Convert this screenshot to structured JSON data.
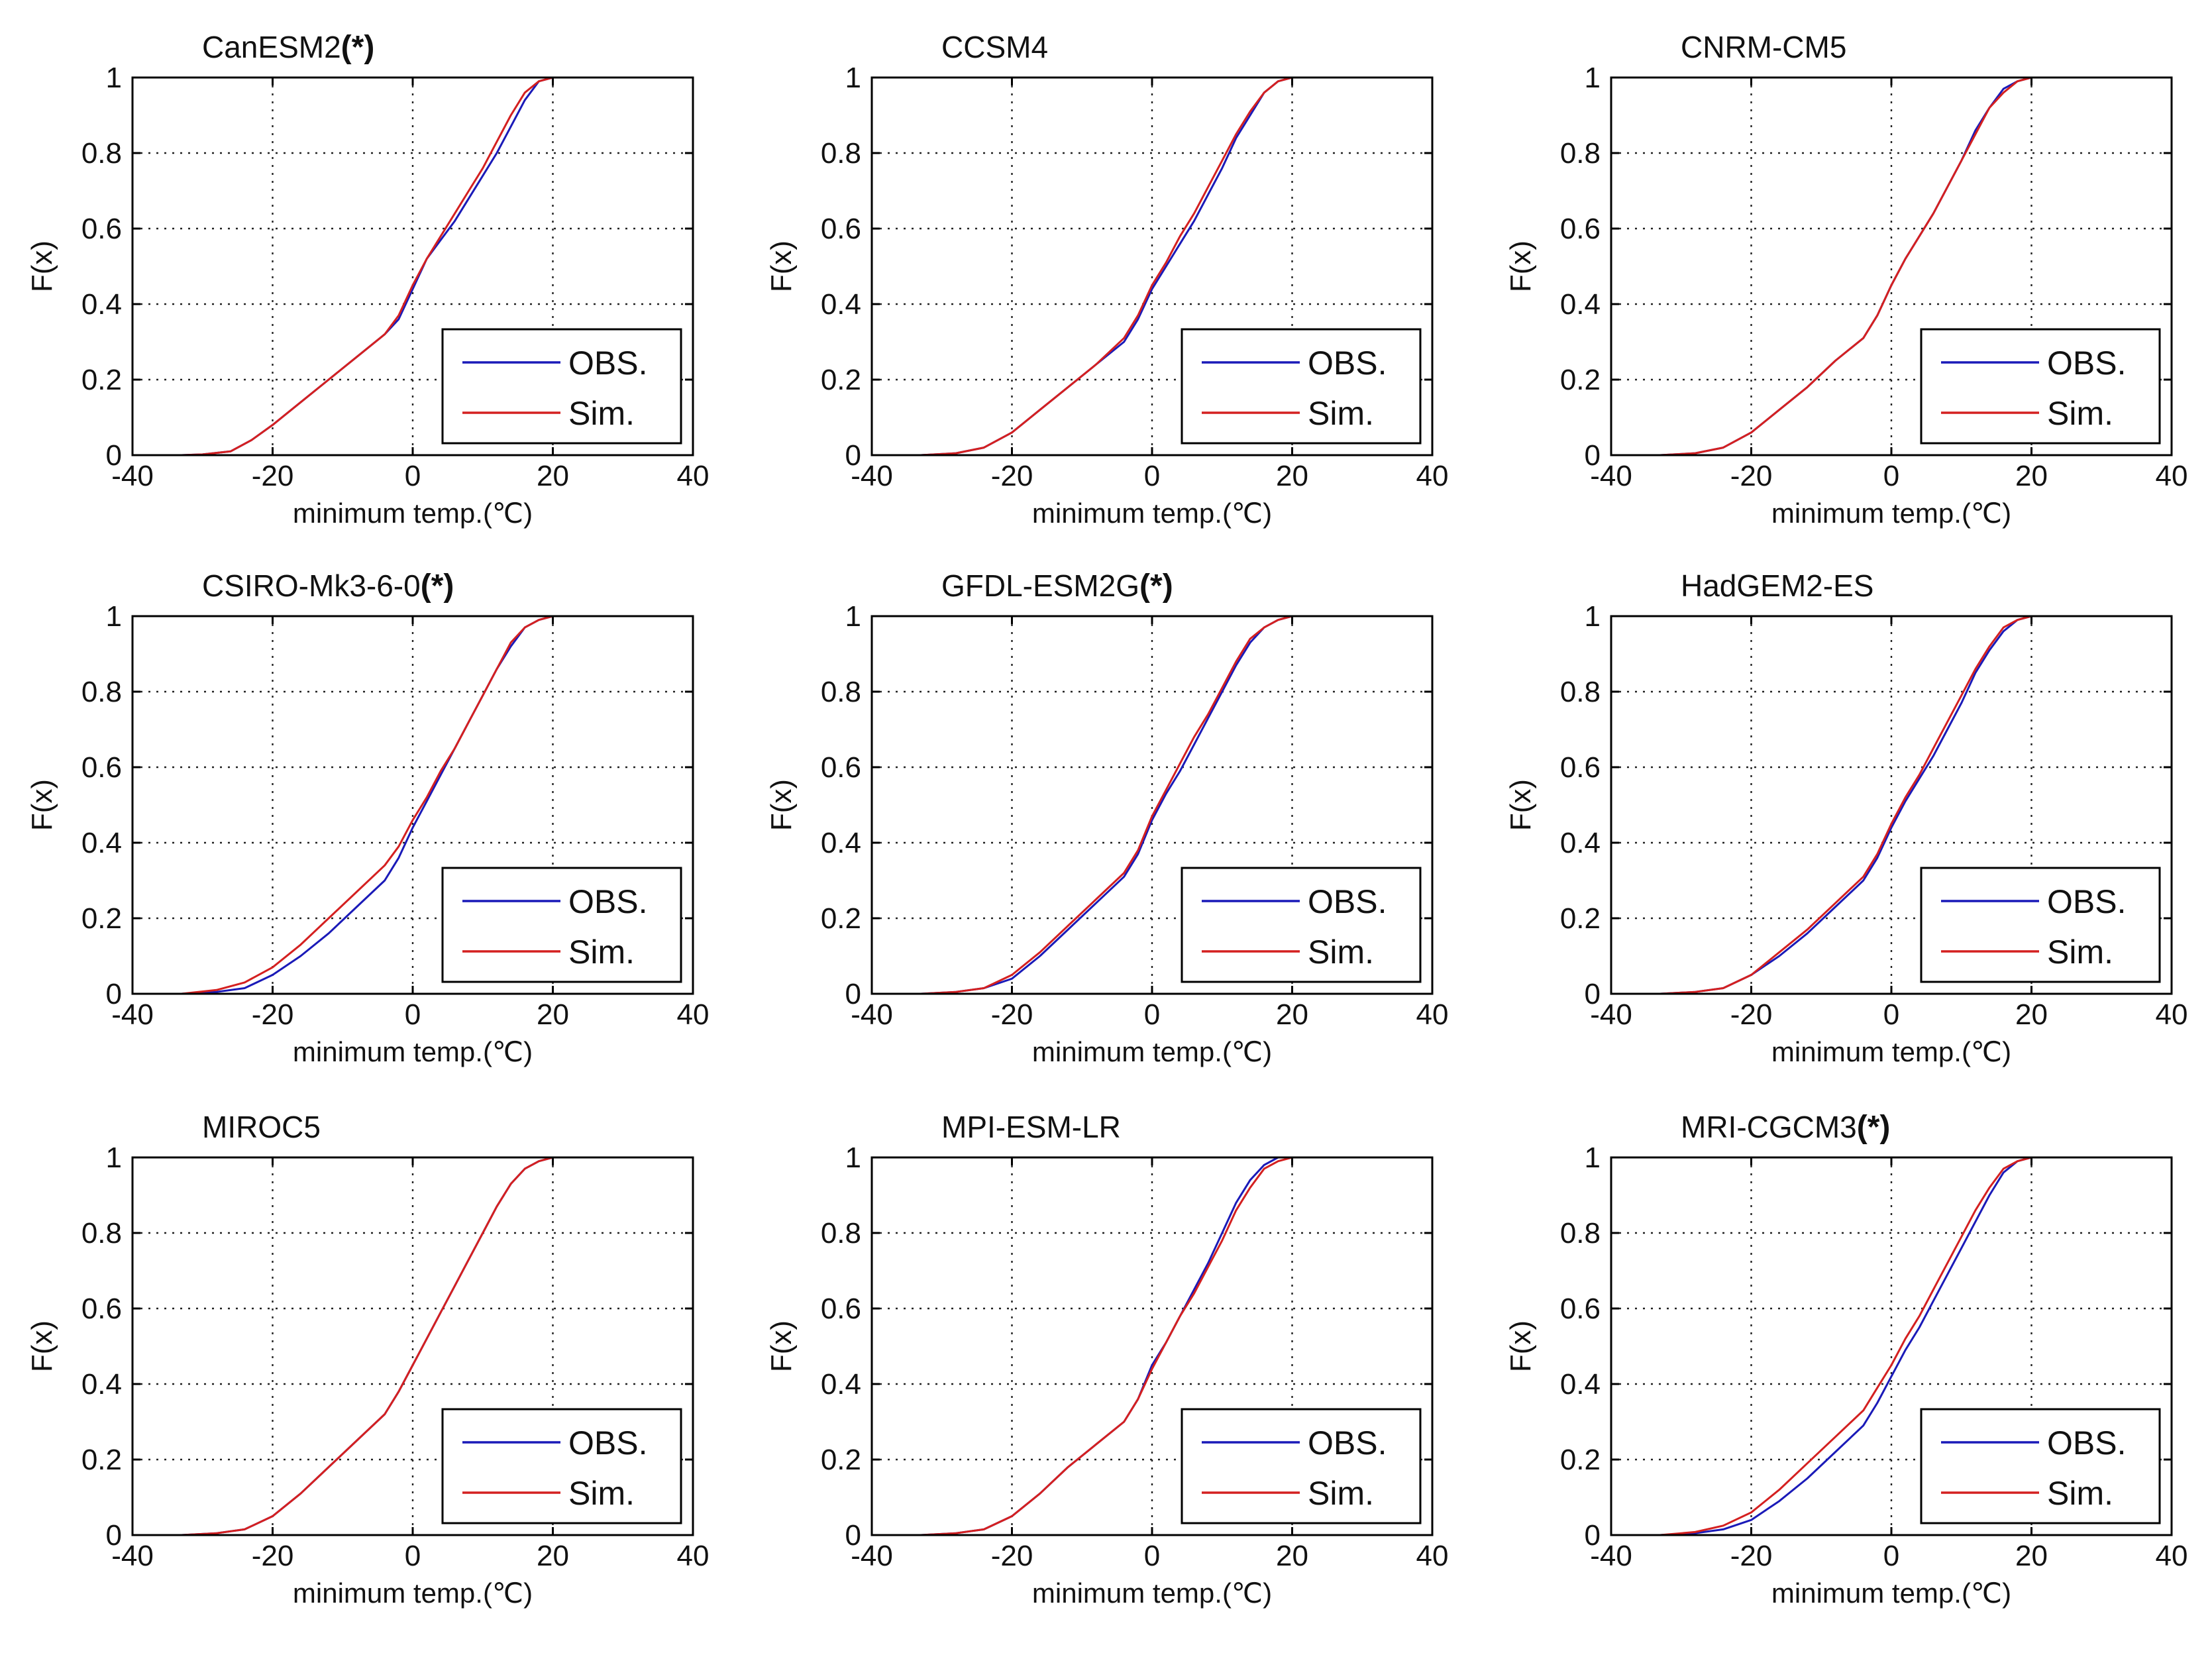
{
  "colors": {
    "obs": "#1a1ab8",
    "sim": "#d42020",
    "axis": "#000000",
    "grid": "#222222"
  },
  "chart_data": [
    {
      "type": "line",
      "title": "CanESM2",
      "marker": "(*)",
      "xlabel": "minimum temp.(℃)",
      "ylabel": "F(x)",
      "xlim": [
        -40,
        40
      ],
      "ylim": [
        0,
        1
      ],
      "xticks": [
        "-40",
        "-20",
        "0",
        "20",
        "40"
      ],
      "yticks": [
        "0",
        "0.2",
        "0.4",
        "0.6",
        "0.8",
        "1"
      ],
      "grid": true,
      "legend": "bottom-right",
      "series": [
        {
          "name": "OBS.",
          "color": "#1a1ab8",
          "x": [
            -33,
            -30,
            -26,
            -23,
            -20,
            -16,
            -12,
            -8,
            -4,
            -2,
            0,
            2,
            4,
            6,
            8,
            10,
            12,
            14,
            16,
            18,
            20
          ],
          "y": [
            0,
            0.002,
            0.01,
            0.04,
            0.08,
            0.14,
            0.2,
            0.26,
            0.32,
            0.36,
            0.44,
            0.52,
            0.57,
            0.62,
            0.68,
            0.74,
            0.8,
            0.87,
            0.94,
            0.99,
            1
          ]
        },
        {
          "name": "Sim.",
          "color": "#d42020",
          "x": [
            -33,
            -30,
            -26,
            -23,
            -20,
            -16,
            -12,
            -8,
            -4,
            -2,
            0,
            2,
            4,
            6,
            8,
            10,
            12,
            14,
            16,
            18,
            20
          ],
          "y": [
            0,
            0.002,
            0.01,
            0.04,
            0.08,
            0.14,
            0.2,
            0.26,
            0.32,
            0.37,
            0.45,
            0.52,
            0.58,
            0.64,
            0.7,
            0.76,
            0.83,
            0.9,
            0.96,
            0.99,
            1
          ]
        }
      ]
    },
    {
      "type": "line",
      "title": "CCSM4",
      "marker": "",
      "xlabel": "minimum temp.(℃)",
      "ylabel": "F(x)",
      "xlim": [
        -40,
        40
      ],
      "ylim": [
        0,
        1
      ],
      "xticks": [
        "-40",
        "-20",
        "0",
        "20",
        "40"
      ],
      "yticks": [
        "0",
        "0.2",
        "0.4",
        "0.6",
        "0.8",
        "1"
      ],
      "grid": true,
      "legend": "bottom-right",
      "series": [
        {
          "name": "OBS.",
          "color": "#1a1ab8",
          "x": [
            -33,
            -28,
            -24,
            -20,
            -16,
            -12,
            -8,
            -4,
            -2,
            0,
            2,
            4,
            6,
            8,
            10,
            12,
            14,
            16,
            18,
            20
          ],
          "y": [
            0,
            0.005,
            0.02,
            0.06,
            0.12,
            0.18,
            0.24,
            0.3,
            0.36,
            0.44,
            0.5,
            0.56,
            0.62,
            0.69,
            0.76,
            0.84,
            0.9,
            0.96,
            0.99,
            1
          ]
        },
        {
          "name": "Sim.",
          "color": "#d42020",
          "x": [
            -33,
            -28,
            -24,
            -20,
            -16,
            -12,
            -8,
            -4,
            -2,
            0,
            2,
            4,
            6,
            8,
            10,
            12,
            14,
            16,
            18,
            20
          ],
          "y": [
            0,
            0.005,
            0.02,
            0.06,
            0.12,
            0.18,
            0.24,
            0.31,
            0.37,
            0.45,
            0.51,
            0.58,
            0.64,
            0.71,
            0.78,
            0.85,
            0.91,
            0.96,
            0.99,
            1
          ]
        }
      ]
    },
    {
      "type": "line",
      "title": "CNRM-CM5",
      "marker": "",
      "xlabel": "minimum temp.(℃)",
      "ylabel": "F(x)",
      "xlim": [
        -40,
        40
      ],
      "ylim": [
        0,
        1
      ],
      "xticks": [
        "-40",
        "-20",
        "0",
        "20",
        "40"
      ],
      "yticks": [
        "0",
        "0.2",
        "0.4",
        "0.6",
        "0.8",
        "1"
      ],
      "grid": true,
      "legend": "bottom-right",
      "series": [
        {
          "name": "OBS.",
          "color": "#1a1ab8",
          "x": [
            -33,
            -28,
            -24,
            -20,
            -16,
            -12,
            -8,
            -4,
            -2,
            0,
            2,
            4,
            6,
            8,
            10,
            12,
            14,
            16,
            18,
            20
          ],
          "y": [
            0,
            0.005,
            0.02,
            0.06,
            0.12,
            0.18,
            0.25,
            0.31,
            0.37,
            0.45,
            0.52,
            0.58,
            0.64,
            0.71,
            0.78,
            0.86,
            0.92,
            0.97,
            0.99,
            1
          ]
        },
        {
          "name": "Sim.",
          "color": "#d42020",
          "x": [
            -33,
            -28,
            -24,
            -20,
            -16,
            -12,
            -8,
            -4,
            -2,
            0,
            2,
            4,
            6,
            8,
            10,
            12,
            14,
            16,
            18,
            20
          ],
          "y": [
            0,
            0.005,
            0.02,
            0.06,
            0.12,
            0.18,
            0.25,
            0.31,
            0.37,
            0.45,
            0.52,
            0.58,
            0.64,
            0.71,
            0.78,
            0.85,
            0.92,
            0.96,
            0.99,
            1
          ]
        }
      ]
    },
    {
      "type": "line",
      "title": "CSIRO-Mk3-6-0",
      "marker": "(*)",
      "xlabel": "minimum temp.(℃)",
      "ylabel": "F(x)",
      "xlim": [
        -40,
        40
      ],
      "ylim": [
        0,
        1
      ],
      "xticks": [
        "-40",
        "-20",
        "0",
        "20",
        "40"
      ],
      "yticks": [
        "0",
        "0.2",
        "0.4",
        "0.6",
        "0.8",
        "1"
      ],
      "grid": true,
      "legend": "bottom-right",
      "series": [
        {
          "name": "OBS.",
          "color": "#1a1ab8",
          "x": [
            -33,
            -28,
            -24,
            -20,
            -16,
            -12,
            -8,
            -4,
            -2,
            0,
            2,
            4,
            6,
            8,
            10,
            12,
            14,
            16,
            18,
            20
          ],
          "y": [
            0,
            0.005,
            0.015,
            0.05,
            0.1,
            0.16,
            0.23,
            0.3,
            0.36,
            0.44,
            0.51,
            0.58,
            0.65,
            0.72,
            0.79,
            0.86,
            0.92,
            0.97,
            0.99,
            1
          ]
        },
        {
          "name": "Sim.",
          "color": "#d42020",
          "x": [
            -33,
            -28,
            -24,
            -20,
            -16,
            -12,
            -8,
            -4,
            -2,
            0,
            2,
            4,
            6,
            8,
            10,
            12,
            14,
            16,
            18,
            20
          ],
          "y": [
            0,
            0.01,
            0.03,
            0.07,
            0.13,
            0.2,
            0.27,
            0.34,
            0.39,
            0.46,
            0.52,
            0.59,
            0.65,
            0.72,
            0.79,
            0.86,
            0.93,
            0.97,
            0.99,
            1
          ]
        }
      ]
    },
    {
      "type": "line",
      "title": "GFDL-ESM2G",
      "marker": "(*)",
      "xlabel": "minimum temp.(℃)",
      "ylabel": "F(x)",
      "xlim": [
        -40,
        40
      ],
      "ylim": [
        0,
        1
      ],
      "xticks": [
        "-40",
        "-20",
        "0",
        "20",
        "40"
      ],
      "yticks": [
        "0",
        "0.2",
        "0.4",
        "0.6",
        "0.8",
        "1"
      ],
      "grid": true,
      "legend": "bottom-right",
      "series": [
        {
          "name": "OBS.",
          "color": "#1a1ab8",
          "x": [
            -33,
            -28,
            -24,
            -20,
            -16,
            -12,
            -8,
            -4,
            -2,
            0,
            2,
            4,
            6,
            8,
            10,
            12,
            14,
            16,
            18,
            20
          ],
          "y": [
            0,
            0.005,
            0.015,
            0.04,
            0.1,
            0.17,
            0.24,
            0.31,
            0.37,
            0.46,
            0.53,
            0.59,
            0.66,
            0.73,
            0.8,
            0.87,
            0.93,
            0.97,
            0.99,
            1
          ]
        },
        {
          "name": "Sim.",
          "color": "#d42020",
          "x": [
            -33,
            -28,
            -24,
            -20,
            -16,
            -12,
            -8,
            -4,
            -2,
            0,
            2,
            4,
            6,
            8,
            10,
            12,
            14,
            16,
            18,
            20
          ],
          "y": [
            0,
            0.005,
            0.015,
            0.05,
            0.11,
            0.18,
            0.25,
            0.32,
            0.38,
            0.47,
            0.54,
            0.61,
            0.68,
            0.74,
            0.81,
            0.88,
            0.94,
            0.97,
            0.99,
            1
          ]
        }
      ]
    },
    {
      "type": "line",
      "title": "HadGEM2-ES",
      "marker": "",
      "xlabel": "minimum temp.(℃)",
      "ylabel": "F(x)",
      "xlim": [
        -40,
        40
      ],
      "ylim": [
        0,
        1
      ],
      "xticks": [
        "-40",
        "-20",
        "0",
        "20",
        "40"
      ],
      "yticks": [
        "0",
        "0.2",
        "0.4",
        "0.6",
        "0.8",
        "1"
      ],
      "grid": true,
      "legend": "bottom-right",
      "series": [
        {
          "name": "OBS.",
          "color": "#1a1ab8",
          "x": [
            -33,
            -28,
            -24,
            -20,
            -16,
            -12,
            -8,
            -4,
            -2,
            0,
            2,
            4,
            6,
            8,
            10,
            12,
            14,
            16,
            18,
            20
          ],
          "y": [
            0,
            0.005,
            0.015,
            0.05,
            0.1,
            0.16,
            0.23,
            0.3,
            0.36,
            0.44,
            0.51,
            0.57,
            0.63,
            0.7,
            0.77,
            0.85,
            0.91,
            0.96,
            0.99,
            1
          ]
        },
        {
          "name": "Sim.",
          "color": "#d42020",
          "x": [
            -33,
            -28,
            -24,
            -20,
            -16,
            -12,
            -8,
            -4,
            -2,
            0,
            2,
            4,
            6,
            8,
            10,
            12,
            14,
            16,
            18,
            20
          ],
          "y": [
            0,
            0.005,
            0.015,
            0.05,
            0.11,
            0.17,
            0.24,
            0.31,
            0.37,
            0.45,
            0.52,
            0.58,
            0.65,
            0.72,
            0.79,
            0.86,
            0.92,
            0.97,
            0.99,
            1
          ]
        }
      ]
    },
    {
      "type": "line",
      "title": "MIROC5",
      "marker": "",
      "xlabel": "minimum temp.(℃)",
      "ylabel": "F(x)",
      "xlim": [
        -40,
        40
      ],
      "ylim": [
        0,
        1
      ],
      "xticks": [
        "-40",
        "-20",
        "0",
        "20",
        "40"
      ],
      "yticks": [
        "0",
        "0.2",
        "0.4",
        "0.6",
        "0.8",
        "1"
      ],
      "grid": true,
      "legend": "bottom-right",
      "series": [
        {
          "name": "OBS.",
          "color": "#1a1ab8",
          "x": [
            -33,
            -28,
            -24,
            -20,
            -16,
            -12,
            -8,
            -4,
            -2,
            0,
            2,
            4,
            6,
            8,
            10,
            12,
            14,
            16,
            18,
            20
          ],
          "y": [
            0,
            0.005,
            0.015,
            0.05,
            0.11,
            0.18,
            0.25,
            0.32,
            0.38,
            0.45,
            0.52,
            0.59,
            0.66,
            0.73,
            0.8,
            0.87,
            0.93,
            0.97,
            0.99,
            1
          ]
        },
        {
          "name": "Sim.",
          "color": "#d42020",
          "x": [
            -33,
            -28,
            -24,
            -20,
            -16,
            -12,
            -8,
            -4,
            -2,
            0,
            2,
            4,
            6,
            8,
            10,
            12,
            14,
            16,
            18,
            20
          ],
          "y": [
            0,
            0.005,
            0.015,
            0.05,
            0.11,
            0.18,
            0.25,
            0.32,
            0.38,
            0.45,
            0.52,
            0.59,
            0.66,
            0.73,
            0.8,
            0.87,
            0.93,
            0.97,
            0.99,
            1
          ]
        }
      ]
    },
    {
      "type": "line",
      "title": "MPI-ESM-LR",
      "marker": "",
      "xlabel": "minimum temp.(℃)",
      "ylabel": "F(x)",
      "xlim": [
        -40,
        40
      ],
      "ylim": [
        0,
        1
      ],
      "xticks": [
        "-40",
        "-20",
        "0",
        "20",
        "40"
      ],
      "yticks": [
        "0",
        "0.2",
        "0.4",
        "0.6",
        "0.8",
        "1"
      ],
      "grid": true,
      "legend": "bottom-right",
      "series": [
        {
          "name": "OBS.",
          "color": "#1a1ab8",
          "x": [
            -33,
            -28,
            -24,
            -20,
            -16,
            -12,
            -8,
            -4,
            -2,
            0,
            2,
            4,
            6,
            8,
            10,
            12,
            14,
            16,
            18,
            20
          ],
          "y": [
            0,
            0.005,
            0.015,
            0.05,
            0.11,
            0.18,
            0.24,
            0.3,
            0.36,
            0.45,
            0.51,
            0.58,
            0.65,
            0.72,
            0.8,
            0.88,
            0.94,
            0.98,
            1,
            1
          ]
        },
        {
          "name": "Sim.",
          "color": "#d42020",
          "x": [
            -33,
            -28,
            -24,
            -20,
            -16,
            -12,
            -8,
            -4,
            -2,
            0,
            2,
            4,
            6,
            8,
            10,
            12,
            14,
            16,
            18,
            20
          ],
          "y": [
            0,
            0.005,
            0.015,
            0.05,
            0.11,
            0.18,
            0.24,
            0.3,
            0.36,
            0.44,
            0.51,
            0.58,
            0.64,
            0.71,
            0.78,
            0.86,
            0.92,
            0.97,
            0.99,
            1
          ]
        }
      ]
    },
    {
      "type": "line",
      "title": "MRI-CGCM3",
      "marker": "(*)",
      "xlabel": "minimum temp.(℃)",
      "ylabel": "F(x)",
      "xlim": [
        -40,
        40
      ],
      "ylim": [
        0,
        1
      ],
      "xticks": [
        "-40",
        "-20",
        "0",
        "20",
        "40"
      ],
      "yticks": [
        "0",
        "0.2",
        "0.4",
        "0.6",
        "0.8",
        "1"
      ],
      "grid": true,
      "legend": "bottom-right",
      "series": [
        {
          "name": "OBS.",
          "color": "#1a1ab8",
          "x": [
            -33,
            -28,
            -24,
            -20,
            -16,
            -12,
            -8,
            -4,
            -2,
            0,
            2,
            4,
            6,
            8,
            10,
            12,
            14,
            16,
            18,
            20
          ],
          "y": [
            0,
            0.005,
            0.015,
            0.04,
            0.09,
            0.15,
            0.22,
            0.29,
            0.35,
            0.42,
            0.49,
            0.55,
            0.62,
            0.69,
            0.76,
            0.83,
            0.9,
            0.96,
            0.99,
            1
          ]
        },
        {
          "name": "Sim.",
          "color": "#d42020",
          "x": [
            -33,
            -28,
            -24,
            -20,
            -16,
            -12,
            -8,
            -4,
            -2,
            0,
            2,
            4,
            6,
            8,
            10,
            12,
            14,
            16,
            18,
            20
          ],
          "y": [
            0,
            0.008,
            0.025,
            0.06,
            0.12,
            0.19,
            0.26,
            0.33,
            0.39,
            0.45,
            0.52,
            0.58,
            0.65,
            0.72,
            0.79,
            0.86,
            0.92,
            0.97,
            0.99,
            1
          ]
        }
      ]
    }
  ]
}
